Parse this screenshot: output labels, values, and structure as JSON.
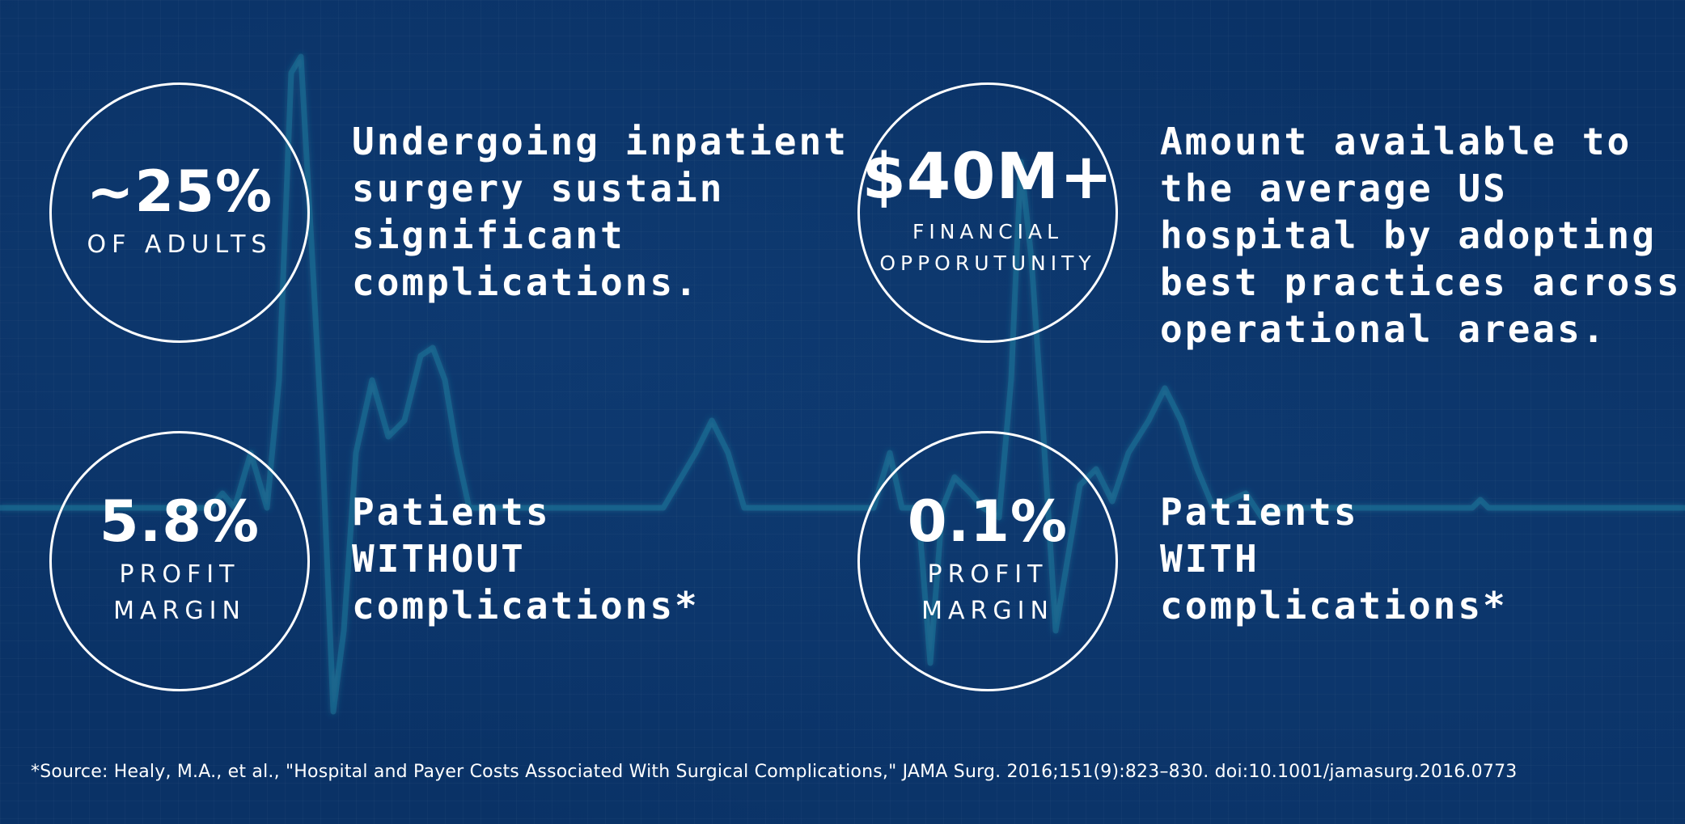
{
  "colors": {
    "background": "#0a3266",
    "foreground": "#ffffff",
    "ecg_line": "#1f7f9f"
  },
  "stats": [
    {
      "value": "~25%",
      "label_lines": [
        "OF ADULTS"
      ],
      "description": "Undergoing inpatient\nsurgery sustain\nsignificant\ncomplications."
    },
    {
      "value": "$40M+",
      "label_lines": [
        "FINANCIAL",
        "OPPORUTUNITY"
      ],
      "description": "Amount available to\nthe average US\nhospital by adopting\nbest practices across\noperational areas."
    },
    {
      "value": "5.8%",
      "label_lines": [
        "PROFIT",
        "MARGIN"
      ],
      "description": "Patients\nWITHOUT\ncomplications*"
    },
    {
      "value": "0.1%",
      "label_lines": [
        "PROFIT",
        "MARGIN"
      ],
      "description": "Patients\nWITH\ncomplications*"
    }
  ],
  "footnote": "*Source: Healy, M.A., et al., \"Hospital and Payer Costs Associated With Surgical Complications,\" JAMA Surg. 2016;151(9):823–830. doi:10.1001/jamasurg.2016.0773"
}
